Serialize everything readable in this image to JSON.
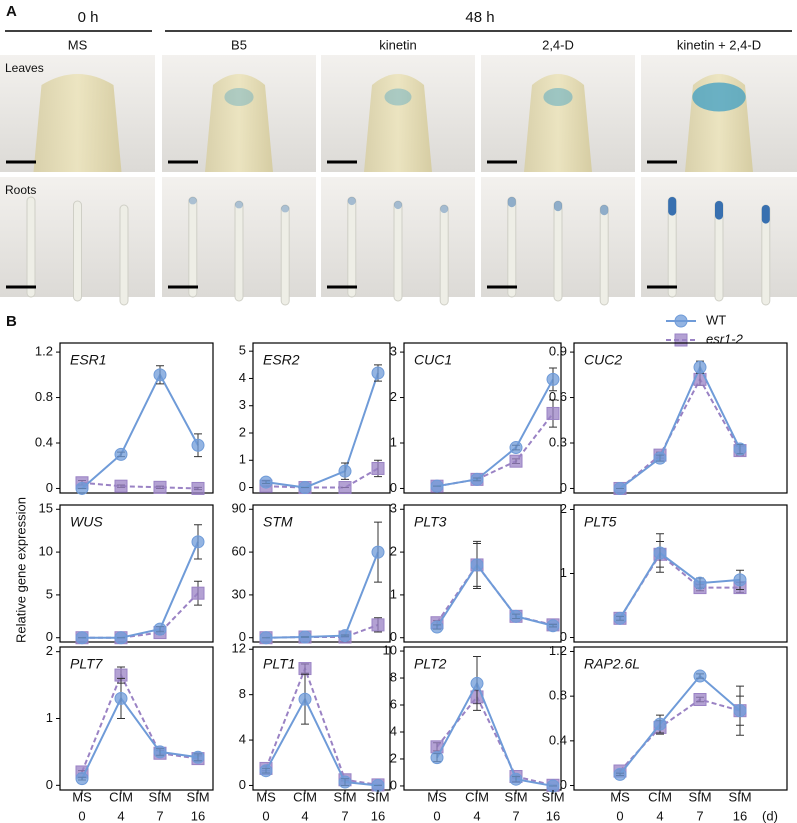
{
  "panel_a": {
    "label": "A",
    "time_0": "0 h",
    "time_48": "48 h",
    "conditions": [
      "MS",
      "B5",
      "kinetin",
      "2,4-D",
      "kinetin + 2,4-D"
    ],
    "rows": [
      "Leaves",
      "Roots"
    ]
  },
  "panel_b": {
    "label": "B",
    "ylabel": "Relative gene expression",
    "categories": [
      "MS",
      "CIM",
      "SIM",
      "SIM"
    ],
    "days": [
      0,
      4,
      7,
      16
    ],
    "unit": "(d)",
    "legend": [
      {
        "name": "WT",
        "color": "#6f9bd8",
        "marker": "circle"
      },
      {
        "name": "esr1-2",
        "color": "#9a82c4",
        "marker": "square"
      }
    ]
  },
  "chart_data": [
    {
      "type": "line",
      "title": "ESR1",
      "ylim": [
        -0.04,
        1.28
      ],
      "yticks": [
        0,
        0.4,
        0.8,
        1.2
      ],
      "series": [
        {
          "values": [
            0,
            0.3,
            1.0,
            0.38
          ],
          "errors": [
            0,
            0.02,
            0.08,
            0.1
          ]
        },
        {
          "values": [
            0.05,
            0.02,
            0.01,
            0
          ],
          "errors": [
            0.02,
            0.01,
            0.01,
            0.01
          ]
        }
      ]
    },
    {
      "type": "line",
      "title": "ESR2",
      "ylim": [
        -0.2,
        5.3
      ],
      "yticks": [
        0,
        1,
        2,
        3,
        4,
        5
      ],
      "series": [
        {
          "values": [
            0.2,
            0,
            0.6,
            4.2
          ],
          "errors": [
            0.05,
            0,
            0.3,
            0.3
          ]
        },
        {
          "values": [
            0.05,
            0,
            0,
            0.7
          ],
          "errors": [
            0,
            0,
            0,
            0.3
          ]
        }
      ]
    },
    {
      "type": "line",
      "title": "CUC1",
      "ylim": [
        -0.1,
        3.2
      ],
      "yticks": [
        0,
        1,
        2,
        3
      ],
      "series": [
        {
          "values": [
            0.05,
            0.2,
            0.9,
            2.4
          ],
          "errors": [
            0,
            0.03,
            0.05,
            0.25
          ]
        },
        {
          "values": [
            0.05,
            0.2,
            0.6,
            1.65
          ],
          "errors": [
            0,
            0.03,
            0.05,
            0.3
          ]
        }
      ]
    },
    {
      "type": "line",
      "title": "CUC2",
      "ylim": [
        -0.03,
        0.96
      ],
      "yticks": [
        0,
        0.3,
        0.6,
        0.9
      ],
      "series": [
        {
          "values": [
            0,
            0.2,
            0.8,
            0.26
          ],
          "errors": [
            0,
            0.02,
            0.04,
            0.03
          ]
        },
        {
          "values": [
            0,
            0.22,
            0.72,
            0.25
          ],
          "errors": [
            0,
            0.02,
            0.04,
            0.03
          ]
        }
      ]
    },
    {
      "type": "line",
      "title": "WUS",
      "ylim": [
        -0.5,
        15.5
      ],
      "yticks": [
        0,
        5,
        10,
        15
      ],
      "series": [
        {
          "values": [
            0,
            0,
            1,
            11.2
          ],
          "errors": [
            0,
            0,
            0.3,
            2
          ]
        },
        {
          "values": [
            0,
            0,
            0.6,
            5.2
          ],
          "errors": [
            0,
            0,
            0.2,
            1.4
          ]
        }
      ]
    },
    {
      "type": "line",
      "title": "STM",
      "ylim": [
        -3,
        93
      ],
      "yticks": [
        0,
        30,
        60,
        90
      ],
      "series": [
        {
          "values": [
            0,
            0.5,
            1.5,
            60
          ],
          "errors": [
            0,
            0.3,
            0.5,
            21
          ]
        },
        {
          "values": [
            0,
            0.5,
            0.5,
            9
          ],
          "errors": [
            0,
            0.2,
            0.2,
            5
          ]
        }
      ]
    },
    {
      "type": "line",
      "title": "PLT3",
      "ylim": [
        -0.1,
        3.1
      ],
      "yticks": [
        0,
        1,
        2,
        3
      ],
      "series": [
        {
          "values": [
            0.25,
            1.7,
            0.5,
            0.28
          ],
          "errors": [
            0.05,
            0.55,
            0.05,
            0.03
          ]
        },
        {
          "values": [
            0.35,
            1.7,
            0.5,
            0.3
          ],
          "errors": [
            0.05,
            0.5,
            0.05,
            0.03
          ]
        }
      ]
    },
    {
      "type": "line",
      "title": "PLT5",
      "ylim": [
        -0.07,
        2.07
      ],
      "yticks": [
        0,
        1,
        2
      ],
      "series": [
        {
          "values": [
            0.3,
            1.32,
            0.85,
            0.9
          ],
          "errors": [
            0.03,
            0.3,
            0.08,
            0.15
          ]
        },
        {
          "values": [
            0.3,
            1.3,
            0.78,
            0.78
          ],
          "errors": [
            0.03,
            0.2,
            0.05,
            0.08
          ]
        }
      ]
    },
    {
      "type": "line",
      "title": "PLT7",
      "ylim": [
        -0.07,
        2.07
      ],
      "yticks": [
        0,
        1,
        2
      ],
      "series": [
        {
          "values": [
            0.1,
            1.3,
            0.5,
            0.42
          ],
          "errors": [
            0.02,
            0.3,
            0.05,
            0.05
          ]
        },
        {
          "values": [
            0.2,
            1.65,
            0.48,
            0.4
          ],
          "errors": [
            0.02,
            0.12,
            0.04,
            0.04
          ]
        }
      ]
    },
    {
      "type": "line",
      "title": "PLT1",
      "ylim": [
        -0.4,
        12.2
      ],
      "yticks": [
        0,
        4,
        8,
        12
      ],
      "series": [
        {
          "values": [
            1.3,
            7.6,
            0.3,
            0
          ],
          "errors": [
            0.2,
            2.2,
            0.3,
            0
          ]
        },
        {
          "values": [
            1.5,
            10.3,
            0.5,
            0.05
          ],
          "errors": [
            0.2,
            0.4,
            0.1,
            0.02
          ]
        }
      ]
    },
    {
      "type": "line",
      "title": "PLT2",
      "ylim": [
        -0.3,
        10.3
      ],
      "yticks": [
        0,
        2,
        4,
        6,
        8,
        10
      ],
      "series": [
        {
          "values": [
            2.1,
            7.6,
            0.5,
            0
          ],
          "errors": [
            0.3,
            2,
            0.2,
            0
          ]
        },
        {
          "values": [
            2.9,
            6.6,
            0.7,
            0.05
          ],
          "errors": [
            0.3,
            0.5,
            0.1,
            0.02
          ]
        }
      ]
    },
    {
      "type": "line",
      "title": "RAP2.6L",
      "ylim": [
        -0.04,
        1.24
      ],
      "yticks": [
        0,
        0.4,
        0.8,
        1.2
      ],
      "series": [
        {
          "values": [
            0.1,
            0.55,
            0.98,
            0.67
          ],
          "errors": [
            0.01,
            0.08,
            0.02,
            0.22
          ]
        },
        {
          "values": [
            0.13,
            0.52,
            0.77,
            0.67
          ],
          "errors": [
            0.01,
            0.06,
            0.02,
            0.13
          ]
        }
      ]
    }
  ]
}
